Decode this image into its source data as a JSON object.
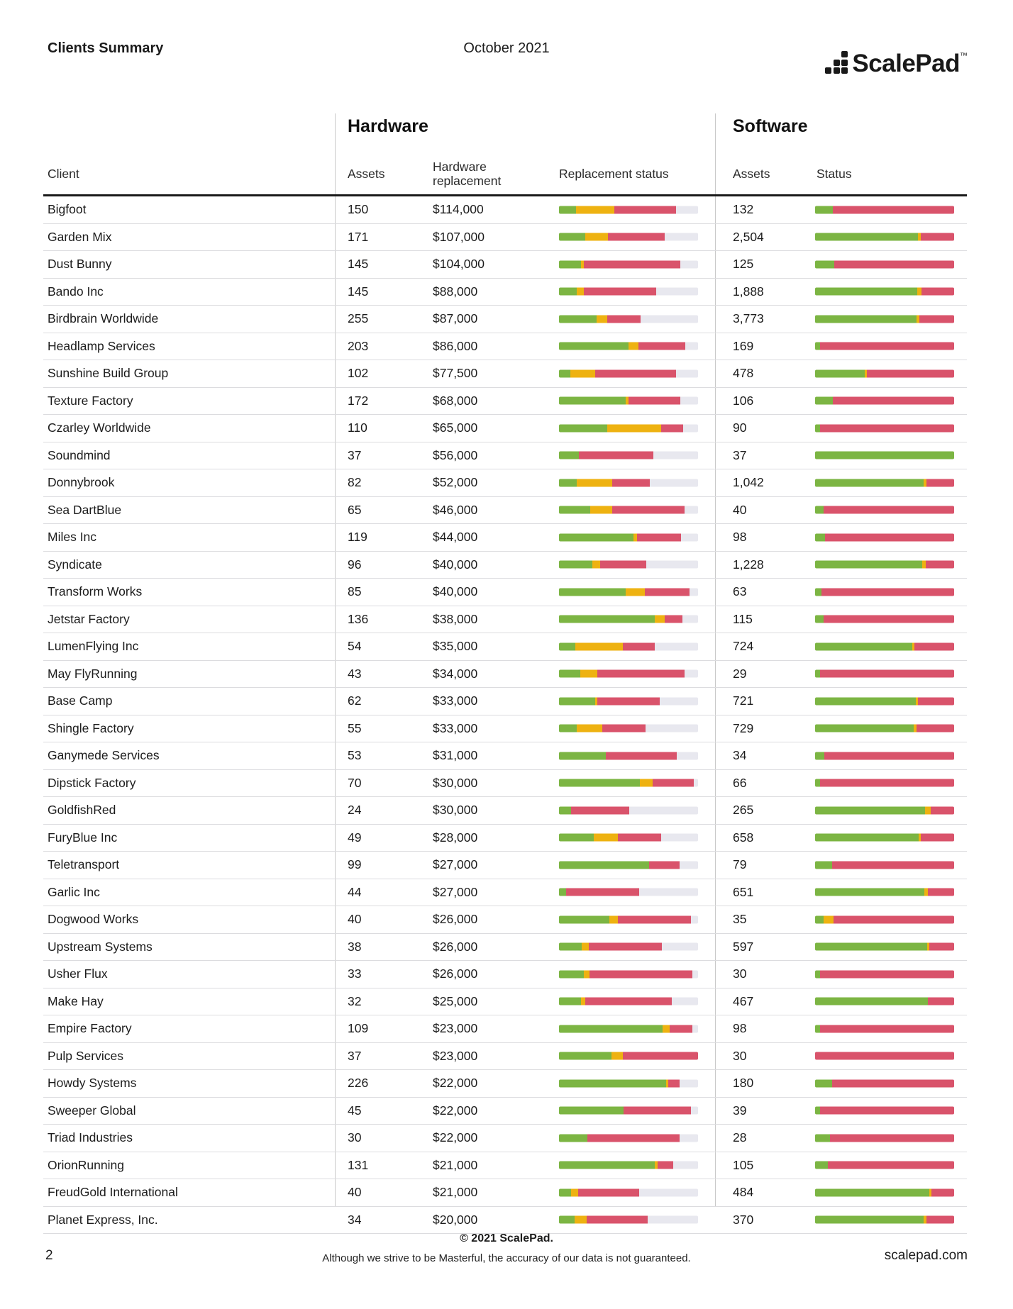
{
  "header": {
    "title": "Clients Summary",
    "date": "October 2021",
    "logo_text": "ScalePad",
    "logo_tm": "™"
  },
  "table": {
    "section_hardware": "Hardware",
    "section_software": "Software",
    "columns": {
      "client": "Client",
      "hw_assets": "Assets",
      "hw_replacement": "Hardware replacement",
      "hw_status": "Replacement status",
      "sw_assets": "Assets",
      "sw_status": "Status"
    },
    "rows": [
      {
        "client": "Bigfoot",
        "hw_assets": "150",
        "hw_replacement": "$114,000",
        "hw_status_pct": {
          "green": 12,
          "yellow": 28,
          "red": 44
        },
        "sw_assets": "132",
        "sw_status_pct": {
          "green": 13,
          "yellow": 0,
          "red": 87
        }
      },
      {
        "client": "Garden Mix",
        "hw_assets": "171",
        "hw_replacement": "$107,000",
        "hw_status_pct": {
          "green": 19,
          "yellow": 16,
          "red": 41
        },
        "sw_assets": "2,504",
        "sw_status_pct": {
          "green": 74,
          "yellow": 2,
          "red": 24
        }
      },
      {
        "client": "Dust Bunny",
        "hw_assets": "145",
        "hw_replacement": "$104,000",
        "hw_status_pct": {
          "green": 16,
          "yellow": 2,
          "red": 69
        },
        "sw_assets": "125",
        "sw_status_pct": {
          "green": 14,
          "yellow": 0,
          "red": 86
        }
      },
      {
        "client": "Bando Inc",
        "hw_assets": "145",
        "hw_replacement": "$88,000",
        "hw_status_pct": {
          "green": 12.5,
          "yellow": 5.5,
          "red": 52
        },
        "sw_assets": "1,888",
        "sw_status_pct": {
          "green": 73.5,
          "yellow": 3,
          "red": 23.5
        }
      },
      {
        "client": "Birdbrain Worldwide",
        "hw_assets": "255",
        "hw_replacement": "$87,000",
        "hw_status_pct": {
          "green": 27,
          "yellow": 7.5,
          "red": 24
        },
        "sw_assets": "3,773",
        "sw_status_pct": {
          "green": 73,
          "yellow": 2,
          "red": 25
        }
      },
      {
        "client": "Headlamp Services",
        "hw_assets": "203",
        "hw_replacement": "$86,000",
        "hw_status_pct": {
          "green": 50,
          "yellow": 7,
          "red": 34
        },
        "sw_assets": "169",
        "sw_status_pct": {
          "green": 3.5,
          "yellow": 0,
          "red": 96.5
        }
      },
      {
        "client": "Sunshine Build Group",
        "hw_assets": "102",
        "hw_replacement": "$77,500",
        "hw_status_pct": {
          "green": 8,
          "yellow": 18,
          "red": 58
        },
        "sw_assets": "478",
        "sw_status_pct": {
          "green": 35.5,
          "yellow": 2,
          "red": 62.5
        }
      },
      {
        "client": "Texture Factory",
        "hw_assets": "172",
        "hw_replacement": "$68,000",
        "hw_status_pct": {
          "green": 48,
          "yellow": 2,
          "red": 37
        },
        "sw_assets": "106",
        "sw_status_pct": {
          "green": 12.5,
          "yellow": 0,
          "red": 87.5
        }
      },
      {
        "client": "Czarley Worldwide",
        "hw_assets": "110",
        "hw_replacement": "$65,000",
        "hw_status_pct": {
          "green": 34.5,
          "yellow": 39,
          "red": 16
        },
        "sw_assets": "90",
        "sw_status_pct": {
          "green": 3.5,
          "yellow": 0,
          "red": 96.5
        }
      },
      {
        "client": "Soundmind",
        "hw_assets": "37",
        "hw_replacement": "$56,000",
        "hw_status_pct": {
          "green": 14.5,
          "yellow": 0,
          "red": 53.5
        },
        "sw_assets": "37",
        "sw_status_pct": {
          "green": 100,
          "yellow": 0,
          "red": 0
        }
      },
      {
        "client": "Donnybrook",
        "hw_assets": "82",
        "hw_replacement": "$52,000",
        "hw_status_pct": {
          "green": 12.5,
          "yellow": 26,
          "red": 27
        },
        "sw_assets": "1,042",
        "sw_status_pct": {
          "green": 78,
          "yellow": 2,
          "red": 20
        }
      },
      {
        "client": "Sea DartBlue",
        "hw_assets": "65",
        "hw_replacement": "$46,000",
        "hw_status_pct": {
          "green": 22.5,
          "yellow": 16,
          "red": 52
        },
        "sw_assets": "40",
        "sw_status_pct": {
          "green": 6,
          "yellow": 0,
          "red": 94
        }
      },
      {
        "client": "Miles Inc",
        "hw_assets": "119",
        "hw_replacement": "$44,000",
        "hw_status_pct": {
          "green": 53.5,
          "yellow": 2.5,
          "red": 32
        },
        "sw_assets": "98",
        "sw_status_pct": {
          "green": 7,
          "yellow": 0,
          "red": 93
        }
      },
      {
        "client": "Syndicate",
        "hw_assets": "96",
        "hw_replacement": "$40,000",
        "hw_status_pct": {
          "green": 24,
          "yellow": 5.5,
          "red": 33.5
        },
        "sw_assets": "1,228",
        "sw_status_pct": {
          "green": 77,
          "yellow": 2.5,
          "red": 20.5
        }
      },
      {
        "client": "Transform Works",
        "hw_assets": "85",
        "hw_replacement": "$40,000",
        "hw_status_pct": {
          "green": 48,
          "yellow": 13.5,
          "red": 32.5
        },
        "sw_assets": "63",
        "sw_status_pct": {
          "green": 4.5,
          "yellow": 0,
          "red": 95.5
        }
      },
      {
        "client": "Jetstar Factory",
        "hw_assets": "136",
        "hw_replacement": "$38,000",
        "hw_status_pct": {
          "green": 69,
          "yellow": 7,
          "red": 13
        },
        "sw_assets": "115",
        "sw_status_pct": {
          "green": 6,
          "yellow": 0,
          "red": 94
        }
      },
      {
        "client": "LumenFlying Inc",
        "hw_assets": "54",
        "hw_replacement": "$35,000",
        "hw_status_pct": {
          "green": 11.5,
          "yellow": 34.5,
          "red": 23
        },
        "sw_assets": "724",
        "sw_status_pct": {
          "green": 70,
          "yellow": 1.5,
          "red": 28.5
        }
      },
      {
        "client": "May FlyRunning",
        "hw_assets": "43",
        "hw_replacement": "$34,000",
        "hw_status_pct": {
          "green": 15.5,
          "yellow": 12,
          "red": 63
        },
        "sw_assets": "29",
        "sw_status_pct": {
          "green": 3.5,
          "yellow": 0,
          "red": 96.5
        }
      },
      {
        "client": "Base Camp",
        "hw_assets": "62",
        "hw_replacement": "$33,000",
        "hw_status_pct": {
          "green": 26,
          "yellow": 1.5,
          "red": 45
        },
        "sw_assets": "721",
        "sw_status_pct": {
          "green": 72.5,
          "yellow": 1.5,
          "red": 26
        }
      },
      {
        "client": "Shingle Factory",
        "hw_assets": "55",
        "hw_replacement": "$33,000",
        "hw_status_pct": {
          "green": 12.5,
          "yellow": 18.5,
          "red": 31
        },
        "sw_assets": "729",
        "sw_status_pct": {
          "green": 71,
          "yellow": 2,
          "red": 27
        }
      },
      {
        "client": "Ganymede Services",
        "hw_assets": "53",
        "hw_replacement": "$31,000",
        "hw_status_pct": {
          "green": 33.5,
          "yellow": 0,
          "red": 51
        },
        "sw_assets": "34",
        "sw_status_pct": {
          "green": 6.5,
          "yellow": 0,
          "red": 93.5
        }
      },
      {
        "client": "Dipstick Factory",
        "hw_assets": "70",
        "hw_replacement": "$30,000",
        "hw_status_pct": {
          "green": 58,
          "yellow": 9.5,
          "red": 29.5
        },
        "sw_assets": "66",
        "sw_status_pct": {
          "green": 3.5,
          "yellow": 0,
          "red": 96.5
        }
      },
      {
        "client": "GoldfishRed",
        "hw_assets": "24",
        "hw_replacement": "$30,000",
        "hw_status_pct": {
          "green": 8.5,
          "yellow": 0,
          "red": 42
        },
        "sw_assets": "265",
        "sw_status_pct": {
          "green": 79,
          "yellow": 4,
          "red": 17
        }
      },
      {
        "client": "FuryBlue Inc",
        "hw_assets": "49",
        "hw_replacement": "$28,000",
        "hw_status_pct": {
          "green": 25,
          "yellow": 17.5,
          "red": 31
        },
        "sw_assets": "658",
        "sw_status_pct": {
          "green": 74.5,
          "yellow": 1.5,
          "red": 24
        }
      },
      {
        "client": "Teletransport",
        "hw_assets": "99",
        "hw_replacement": "$27,000",
        "hw_status_pct": {
          "green": 65,
          "yellow": 0,
          "red": 21.5
        },
        "sw_assets": "79",
        "sw_status_pct": {
          "green": 12,
          "yellow": 0,
          "red": 88
        }
      },
      {
        "client": "Garlic Inc",
        "hw_assets": "44",
        "hw_replacement": "$27,000",
        "hw_status_pct": {
          "green": 5,
          "yellow": 0,
          "red": 52.5
        },
        "sw_assets": "651",
        "sw_status_pct": {
          "green": 78.5,
          "yellow": 2.5,
          "red": 19
        }
      },
      {
        "client": "Dogwood Works",
        "hw_assets": "40",
        "hw_replacement": "$26,000",
        "hw_status_pct": {
          "green": 36,
          "yellow": 6.5,
          "red": 52.5
        },
        "sw_assets": "35",
        "sw_status_pct": {
          "green": 6,
          "yellow": 7.5,
          "red": 86.5
        }
      },
      {
        "client": "Upstream Systems",
        "hw_assets": "38",
        "hw_replacement": "$26,000",
        "hw_status_pct": {
          "green": 16.5,
          "yellow": 5,
          "red": 52.5
        },
        "sw_assets": "597",
        "sw_status_pct": {
          "green": 80.5,
          "yellow": 1.5,
          "red": 18
        }
      },
      {
        "client": "Usher Flux",
        "hw_assets": "33",
        "hw_replacement": "$26,000",
        "hw_status_pct": {
          "green": 18,
          "yellow": 4,
          "red": 74
        },
        "sw_assets": "30",
        "sw_status_pct": {
          "green": 3.5,
          "yellow": 0,
          "red": 96.5
        }
      },
      {
        "client": "Make Hay",
        "hw_assets": "32",
        "hw_replacement": "$25,000",
        "hw_status_pct": {
          "green": 16,
          "yellow": 3,
          "red": 62
        },
        "sw_assets": "467",
        "sw_status_pct": {
          "green": 81,
          "yellow": 0,
          "red": 19
        }
      },
      {
        "client": "Empire Factory",
        "hw_assets": "109",
        "hw_replacement": "$23,000",
        "hw_status_pct": {
          "green": 74.5,
          "yellow": 5,
          "red": 16.5
        },
        "sw_assets": "98",
        "sw_status_pct": {
          "green": 3.5,
          "yellow": 0,
          "red": 96.5
        }
      },
      {
        "client": "Pulp Services",
        "hw_assets": "37",
        "hw_replacement": "$23,000",
        "hw_status_pct": {
          "green": 37.5,
          "yellow": 8.5,
          "red": 54
        },
        "sw_assets": "30",
        "sw_status_pct": {
          "green": 0,
          "yellow": 0,
          "red": 100
        }
      },
      {
        "client": "Howdy Systems",
        "hw_assets": "226",
        "hw_replacement": "$22,000",
        "hw_status_pct": {
          "green": 77,
          "yellow": 1.5,
          "red": 8
        },
        "sw_assets": "180",
        "sw_status_pct": {
          "green": 12,
          "yellow": 0,
          "red": 88
        }
      },
      {
        "client": "Sweeper Global",
        "hw_assets": "45",
        "hw_replacement": "$22,000",
        "hw_status_pct": {
          "green": 46.5,
          "yellow": 0,
          "red": 48.5
        },
        "sw_assets": "39",
        "sw_status_pct": {
          "green": 3.5,
          "yellow": 0,
          "red": 96.5
        }
      },
      {
        "client": "Triad Industries",
        "hw_assets": "30",
        "hw_replacement": "$22,000",
        "hw_status_pct": {
          "green": 20.5,
          "yellow": 0,
          "red": 66
        },
        "sw_assets": "28",
        "sw_status_pct": {
          "green": 10.5,
          "yellow": 0,
          "red": 89.5
        }
      },
      {
        "client": "OrionRunning",
        "hw_assets": "131",
        "hw_replacement": "$21,000",
        "hw_status_pct": {
          "green": 69,
          "yellow": 2,
          "red": 11
        },
        "sw_assets": "105",
        "sw_status_pct": {
          "green": 9,
          "yellow": 0,
          "red": 91
        }
      },
      {
        "client": "FreudGold International",
        "hw_assets": "40",
        "hw_replacement": "$21,000",
        "hw_status_pct": {
          "green": 8.5,
          "yellow": 5.5,
          "red": 43.5
        },
        "sw_assets": "484",
        "sw_status_pct": {
          "green": 82,
          "yellow": 1.5,
          "red": 16.5
        }
      },
      {
        "client": "Planet Express, Inc.",
        "hw_assets": "34",
        "hw_replacement": "$20,000",
        "hw_status_pct": {
          "green": 11,
          "yellow": 9,
          "red": 44
        },
        "sw_assets": "370",
        "sw_status_pct": {
          "green": 78,
          "yellow": 2,
          "red": 20
        }
      }
    ]
  },
  "colors": {
    "green": "#7cb543",
    "yellow": "#eeb211",
    "red": "#d9536b",
    "track": "#e8e8ef"
  },
  "footer": {
    "copyright": "© 2021 ScalePad.",
    "disclaimer": "Although we strive to be Masterful, the accuracy of our data is not guaranteed.",
    "page_number": "2",
    "website": "scalepad.com"
  }
}
